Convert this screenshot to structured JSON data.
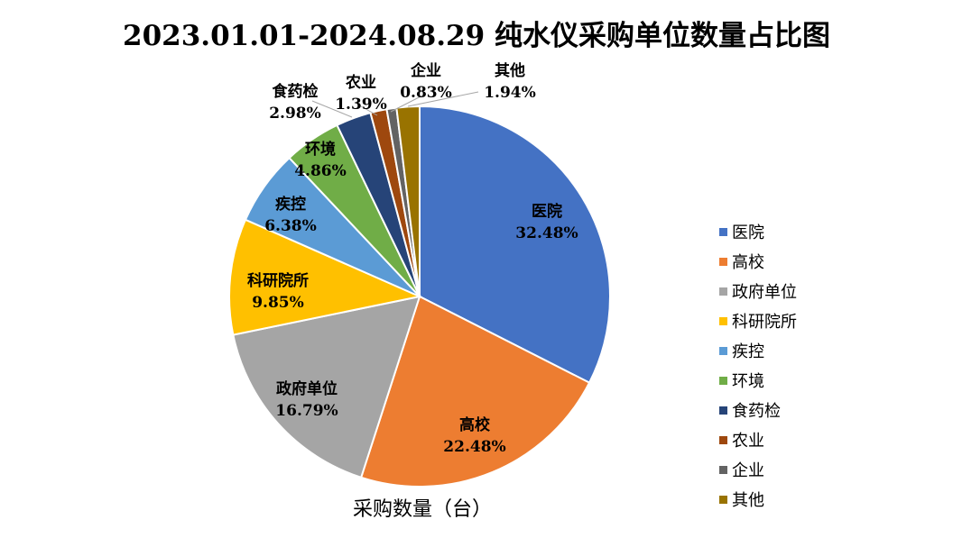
{
  "chart_data": {
    "type": "pie",
    "title": "2023.01.01-2024.08.29 纯水仪采购单位数量占比图",
    "xlabel": "采购数量（台）",
    "legend_position": "right",
    "categories": [
      "医院",
      "高校",
      "政府单位",
      "科研院所",
      "疾控",
      "环境",
      "食药检",
      "农业",
      "企业",
      "其他"
    ],
    "values": [
      32.48,
      22.48,
      16.79,
      9.85,
      6.38,
      4.86,
      2.98,
      1.39,
      0.83,
      1.94
    ],
    "data_labels": [
      "32.48%",
      "22.48%",
      "16.79%",
      "9.85%",
      "6.38%",
      "4.86%",
      "2.98%",
      "1.39%",
      "0.83%",
      "1.94%"
    ],
    "colors": [
      "#4472C4",
      "#ED7D31",
      "#A5A5A5",
      "#FFC000",
      "#5B9BD5",
      "#70AD47",
      "#264478",
      "#9E480E",
      "#636363",
      "#997300"
    ],
    "start_angle_deg": 0,
    "direction": "clockwise"
  }
}
